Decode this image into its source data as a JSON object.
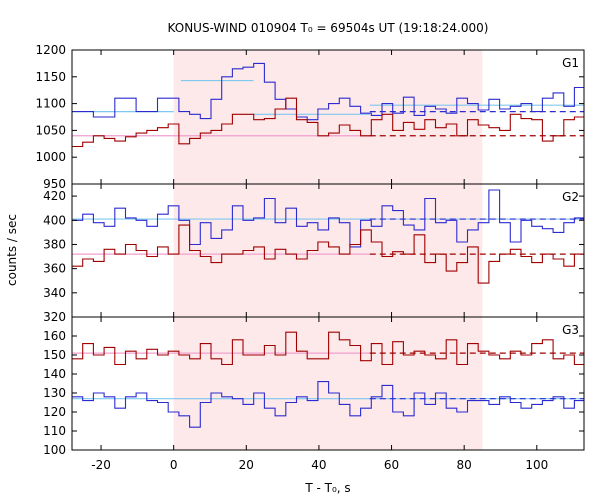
{
  "title": "KONUS-WIND 010904 T₀ = 69504s UT (19:18:24.000)",
  "colors": {
    "blue": "#2b2bd0",
    "red": "#a00000",
    "cyan": "#7fc8f0",
    "pink": "#f09fcf",
    "shade": "#fde8ea"
  },
  "chart_data": {
    "type": "line",
    "title": "KONUS-WIND 010904 T₀ = 69504s UT (19:18:24.000)",
    "xlabel": "T - T₀, s",
    "ylabel": "counts / sec",
    "xlim": [
      -28,
      113
    ],
    "xticks": [
      -20,
      0,
      20,
      40,
      60,
      80,
      100
    ],
    "shaded_interval": [
      0,
      85
    ],
    "panels": [
      {
        "label": "G1",
        "ylim": [
          950,
          1200
        ],
        "yticks": [
          950,
          1000,
          1050,
          1100,
          1150,
          1200
        ],
        "series": [
          {
            "color": "blue",
            "step": 2.944,
            "values": [
              1085,
              1085,
              1075,
              1075,
              1110,
              1110,
              1085,
              1085,
              1110,
              1110,
              1085,
              1080,
              1072,
              1108,
              1150,
              1165,
              1168,
              1175,
              1140,
              1108,
              1090,
              1075,
              1070,
              1090,
              1100,
              1110,
              1095,
              1082,
              1078,
              1100,
              1082,
              1112,
              1078,
              1095,
              1090,
              1082,
              1110,
              1100,
              1088,
              1108,
              1090,
              1095,
              1100,
              1085,
              1110,
              1120,
              1095,
              1130,
              1075,
              1080,
              1110,
              1098,
              1100,
              1085,
              1112,
              1088,
              1100,
              1110,
              1085,
              1110,
              1082,
              1100,
              1108,
              1110,
              1095,
              1090,
              1085,
              1105,
              1100,
              1110,
              1085,
              1102,
              1110,
              1108,
              1110,
              1090,
              1100,
              1080,
              1104,
              1106,
              1108,
              1085,
              1110,
              1100,
              1095,
              1108,
              1080,
              1100,
              1098,
              1085,
              1110,
              1085,
              1095,
              1110,
              1090,
              1102,
              1112,
              1108,
              1090,
              1110,
              1100
            ]
          },
          {
            "color": "red",
            "step": 2.944,
            "values": [
              1020,
              1028,
              1040,
              1035,
              1030,
              1038,
              1045,
              1050,
              1055,
              1062,
              1025,
              1035,
              1045,
              1050,
              1062,
              1080,
              1080,
              1070,
              1072,
              1090,
              1110,
              1070,
              1065,
              1040,
              1045,
              1060,
              1050,
              1040,
              1070,
              1080,
              1050,
              1065,
              1052,
              1070,
              1055,
              1062,
              1040,
              1070,
              1060,
              1055,
              1050,
              1080,
              1072,
              1070,
              1030,
              1040,
              1070,
              1075,
              1062,
              1050,
              1060,
              1070,
              1060,
              1080,
              1045,
              1060,
              1072,
              1062,
              1050,
              1080,
              1070,
              1060,
              1075,
              1060,
              1070,
              1055,
              1030,
              1060,
              1050,
              1015,
              1030,
              1050,
              1040,
              1060,
              1050,
              1025,
              1060,
              1035,
              1050,
              1060,
              1050,
              1040,
              1060,
              1030,
              1020,
              1070,
              1050,
              1045,
              1060,
              1030,
              1045,
              1050,
              1055,
              1040,
              1020,
              1030,
              1050,
              1060,
              1040,
              1070,
              1050
            ]
          }
        ],
        "fits": [
          {
            "color": "cyan",
            "segments": [
              [
                -28,
                0,
                1085
              ],
              [
                2,
                22,
                1143
              ],
              [
                22,
                54,
                1080
              ],
              [
                54,
                85,
                1097
              ],
              [
                85,
                113,
                1097
              ]
            ]
          },
          {
            "color": "blue",
            "dashed": true,
            "segments": [
              [
                54,
                113,
                1085
              ]
            ]
          },
          {
            "color": "red",
            "dashed": true,
            "segments": [
              [
                54,
                113,
                1040
              ]
            ]
          },
          {
            "color": "pink",
            "segments": [
              [
                -28,
                54,
                1040
              ]
            ]
          }
        ]
      },
      {
        "label": "G2",
        "ylim": [
          320,
          430
        ],
        "yticks": [
          320,
          340,
          360,
          380,
          400,
          420
        ],
        "series": [
          {
            "color": "blue",
            "step": 2.944,
            "values": [
              400,
              405,
              398,
              395,
              410,
              402,
              400,
              395,
              405,
              412,
              400,
              380,
              398,
              385,
              392,
              412,
              400,
              402,
              418,
              398,
              410,
              395,
              398,
              392,
              402,
              398,
              378,
              400,
              395,
              412,
              408,
              396,
              392,
              418,
              398,
              400,
              382,
              392,
              398,
              425,
              398,
              382,
              400,
              395,
              393,
              390,
              398,
              402,
              395,
              378,
              400,
              392,
              405,
              400,
              398,
              402,
              402,
              405,
              400,
              410,
              405,
              412,
              400,
              416,
              408,
              418,
              395,
              424,
              420,
              400,
              398,
              396,
              394,
              395,
              402,
              398,
              392,
              398,
              402,
              400,
              398,
              404,
              392,
              400,
              402,
              398,
              400,
              394,
              398,
              392,
              400,
              400,
              404,
              398,
              402,
              400,
              398,
              402,
              400,
              396,
              400
            ]
          },
          {
            "color": "red",
            "step": 2.944,
            "values": [
              362,
              368,
              366,
              376,
              372,
              380,
              375,
              370,
              378,
              372,
              396,
              375,
              370,
              365,
              372,
              372,
              375,
              378,
              368,
              376,
              372,
              368,
              375,
              382,
              378,
              372,
              380,
              392,
              382,
              370,
              374,
              372,
              388,
              365,
              372,
              358,
              365,
              378,
              348,
              366,
              372,
              376,
              370,
              365,
              372,
              368,
              362,
              372,
              368,
              370,
              378,
              372,
              374,
              370,
              375,
              372,
              374,
              376,
              378,
              370,
              372,
              376,
              374,
              372,
              374,
              370,
              368,
              374,
              372,
              370,
              366,
              372,
              376,
              372,
              370,
              374,
              372,
              366,
              370,
              374,
              372,
              370,
              376,
              372,
              374,
              366,
              372,
              370,
              374,
              372,
              368,
              372,
              374,
              360,
              374,
              372,
              370,
              374,
              372,
              376,
              372
            ]
          }
        ],
        "fits": [
          {
            "color": "cyan",
            "segments": [
              [
                -28,
                113,
                401
              ]
            ]
          },
          {
            "color": "blue",
            "dashed": true,
            "segments": [
              [
                54,
                113,
                401
              ]
            ]
          },
          {
            "color": "red",
            "dashed": true,
            "segments": [
              [
                54,
                113,
                372
              ]
            ]
          },
          {
            "color": "pink",
            "segments": [
              [
                -28,
                54,
                372
              ]
            ]
          }
        ]
      },
      {
        "label": "G3",
        "ylim": [
          100,
          170
        ],
        "yticks": [
          100,
          110,
          120,
          130,
          140,
          150,
          160
        ],
        "series": [
          {
            "color": "red",
            "step": 2.944,
            "values": [
              148,
              156,
              150,
              154,
              145,
              152,
              148,
              153,
              150,
              152,
              150,
              148,
              156,
              148,
              145,
              158,
              150,
              150,
              155,
              150,
              162,
              152,
              148,
              148,
              162,
              158,
              155,
              147,
              156,
              145,
              157,
              150,
              152,
              150,
              148,
              158,
              145,
              156,
              152,
              150,
              148,
              152,
              150,
              156,
              158,
              148,
              150,
              145,
              152,
              150,
              152,
              152,
              150,
              148,
              158,
              152,
              156,
              158,
              150,
              156,
              152,
              155,
              156,
              150,
              158,
              152,
              150,
              154,
              150,
              160,
              152,
              156,
              158,
              148,
              150,
              152,
              140,
              150,
              156,
              152,
              150,
              156,
              152,
              158,
              150,
              154,
              152,
              150,
              148,
              156,
              152,
              150,
              158,
              148,
              152,
              156,
              150,
              154,
              152,
              156,
              150
            ]
          },
          {
            "color": "blue",
            "step": 2.944,
            "values": [
              128,
              126,
              130,
              128,
              122,
              128,
              130,
              126,
              125,
              120,
              118,
              112,
              125,
              130,
              128,
              127,
              124,
              130,
              122,
              118,
              125,
              128,
              126,
              136,
              130,
              124,
              118,
              122,
              128,
              134,
              120,
              118,
              130,
              124,
              130,
              122,
              120,
              126,
              126,
              124,
              128,
              125,
              122,
              124,
              126,
              128,
              122,
              126,
              128,
              124,
              126,
              130,
              126,
              128,
              124,
              130,
              128,
              126,
              122,
              126,
              124,
              130,
              128,
              126,
              124,
              130,
              126,
              120,
              124,
              128,
              126,
              130,
              126,
              128,
              122,
              126,
              124,
              130,
              126,
              122,
              128,
              124,
              126,
              128,
              124,
              126,
              130,
              126,
              128,
              122,
              126,
              126,
              124,
              128,
              126,
              124,
              128,
              126,
              122,
              128,
              126
            ]
          }
        ],
        "fits": [
          {
            "color": "cyan",
            "segments": [
              [
                -28,
                113,
                127
              ]
            ]
          },
          {
            "color": "pink",
            "segments": [
              [
                -28,
                54,
                151
              ]
            ]
          },
          {
            "color": "red",
            "dashed": true,
            "segments": [
              [
                54,
                113,
                151
              ]
            ]
          },
          {
            "color": "blue",
            "dashed": true,
            "segments": [
              [
                54,
                113,
                127
              ]
            ]
          }
        ]
      }
    ]
  }
}
